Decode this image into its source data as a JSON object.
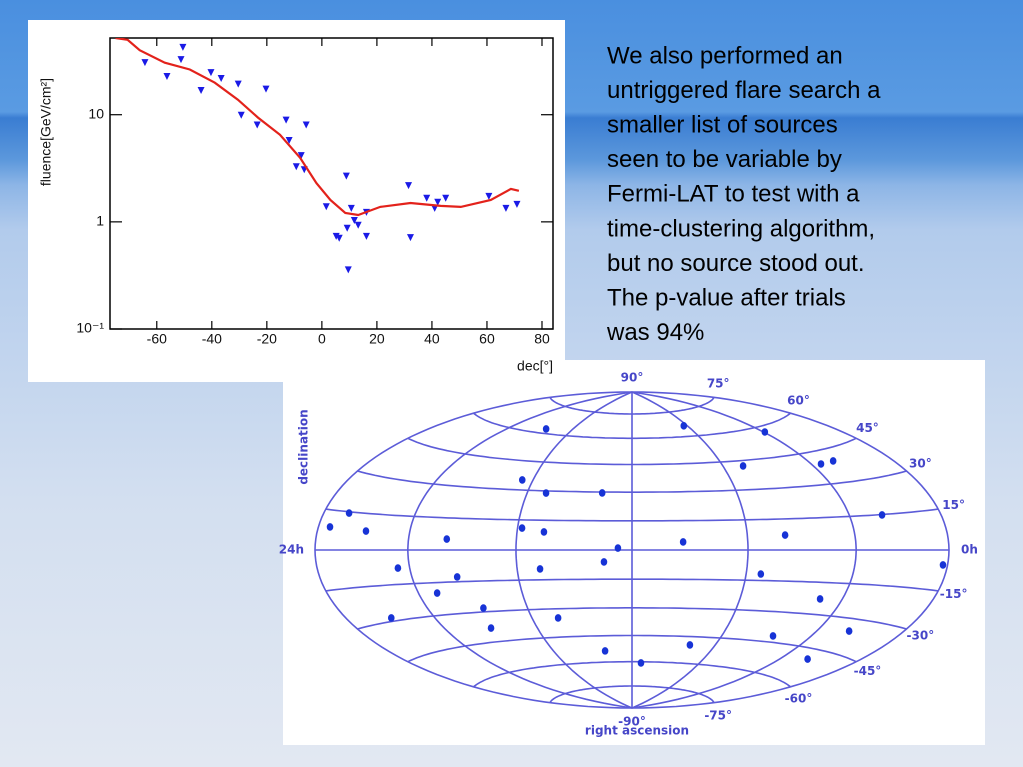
{
  "slide_text": [
    "We also performed an",
    "untriggered flare search a",
    "smaller list of sources",
    "seen to be variable by",
    "Fermi-LAT to test with a",
    "time-clustering algorithm,",
    "but no source stood out.",
    "The p-value after trials",
    "was 94%"
  ],
  "chart_data": [
    {
      "type": "scatter",
      "xlabel": "dec[°]",
      "ylabel": "fluence[GeV/cm²]",
      "log_y": true,
      "xlim": [
        -77,
        84
      ],
      "ylim": [
        0.1,
        52
      ],
      "xticks": [
        -60,
        -40,
        -20,
        0,
        20,
        40,
        60,
        80
      ],
      "yticks": [
        {
          "value": 0.1,
          "label": "10⁻¹"
        },
        1,
        10
      ],
      "series": [
        {
          "type": "scatter",
          "marker": "triangle-down",
          "color": "#1a1ae6",
          "x": [
            -64.3,
            -56.3,
            -50.5,
            -51.2,
            -43.9,
            -40.3,
            -36.6,
            -30.4,
            -29.3,
            -23.5,
            -20.3,
            -13,
            -11.9,
            -9.3,
            -7.5,
            -6.4,
            -5.7,
            1.6,
            5.2,
            6.3,
            8.9,
            9.2,
            9.6,
            10.7,
            11.8,
            13.2,
            16.2,
            16.2,
            31.5,
            32.2,
            38.1,
            41,
            42.1,
            45,
            60.7,
            66.9,
            70.9
          ],
          "values": [
            31,
            23,
            43,
            33,
            17,
            25,
            22,
            19.5,
            10,
            8.1,
            17.5,
            9,
            5.8,
            3.3,
            4.2,
            3.1,
            8.1,
            1.4,
            0.74,
            0.71,
            2.7,
            0.88,
            0.36,
            1.35,
            1.04,
            0.94,
            0.74,
            1.24,
            2.2,
            0.72,
            1.68,
            1.35,
            1.54,
            1.68,
            1.75,
            1.35,
            1.47
          ]
        },
        {
          "type": "line",
          "color": "#e3221b",
          "x": [
            -75,
            -70.6,
            -66.2,
            -57.1,
            -48,
            -38.9,
            -30.5,
            -23.2,
            -15.2,
            -7.9,
            -2,
            3.1,
            8.5,
            13.2,
            21.2,
            32.2,
            43.2,
            50.5,
            61.4,
            68.7,
            71.6
          ],
          "values": [
            52,
            50,
            40,
            30.6,
            26.4,
            19.9,
            13.8,
            9.4,
            6.5,
            3.96,
            2.3,
            1.6,
            1.21,
            1.16,
            1.38,
            1.5,
            1.41,
            1.38,
            1.6,
            2.03,
            1.95
          ]
        }
      ]
    },
    {
      "type": "skymap",
      "projection": "hammer",
      "xlabel": "right ascension",
      "ylabel": "declination",
      "xlim": [
        24,
        0
      ],
      "ylim": [
        -90,
        90
      ],
      "grid": true,
      "color": "#1733d6",
      "grid_color": "#5c5cd8",
      "xticks": [
        {
          "value": 24,
          "label": "24h"
        },
        {
          "value": 0,
          "label": "0h"
        }
      ],
      "yticks": [
        {
          "value": 90,
          "label": "90°"
        },
        {
          "value": 75,
          "label": "75°"
        },
        {
          "value": 60,
          "label": "60°"
        },
        {
          "value": 45,
          "label": "45°"
        },
        {
          "value": 30,
          "label": "30°"
        },
        {
          "value": 15,
          "label": "15°"
        },
        {
          "value": -15,
          "label": "-15°"
        },
        {
          "value": -30,
          "label": "-30°"
        },
        {
          "value": -45,
          "label": "-45°"
        },
        {
          "value": -60,
          "label": "-60°"
        },
        {
          "value": -75,
          "label": "-75°"
        },
        {
          "value": -90,
          "label": "-90°"
        }
      ],
      "x": [
        17.7,
        8.25,
        3.93,
        7.11,
        3.56,
        2.84,
        16.44,
        15.27,
        13.13,
        22.82,
        23.45,
        21.8,
        15.84,
        15.05,
        18.53,
        12.48,
        10.25,
        6.64,
        2.65,
        20.47,
        18.25,
        15.19,
        12.96,
        7.47,
        0.22,
        19.25,
        17.73,
        4.9,
        21.9,
        17.98,
        14.95,
        5.71,
        2.55,
        13.38,
        9.21,
        11.46,
        2.6
      ],
      "values": [
        62.5,
        66.2,
        57.2,
        42.2,
        39.2,
        39.6,
        35.1,
        28.9,
        29.5,
        14.5,
        8.7,
        7.8,
        10.9,
        9.1,
        5.1,
        1.0,
        4.1,
        7.2,
        14.8,
        -7.9,
        -12.7,
        -9.5,
        -6.1,
        -11.8,
        -5.5,
        -19.8,
        -28.1,
        -22.7,
        -28.6,
        -38.1,
        -34.8,
        -41.9,
        -35.3,
        -53.5,
        -49.6,
        -60.7,
        -49.6
      ]
    }
  ]
}
